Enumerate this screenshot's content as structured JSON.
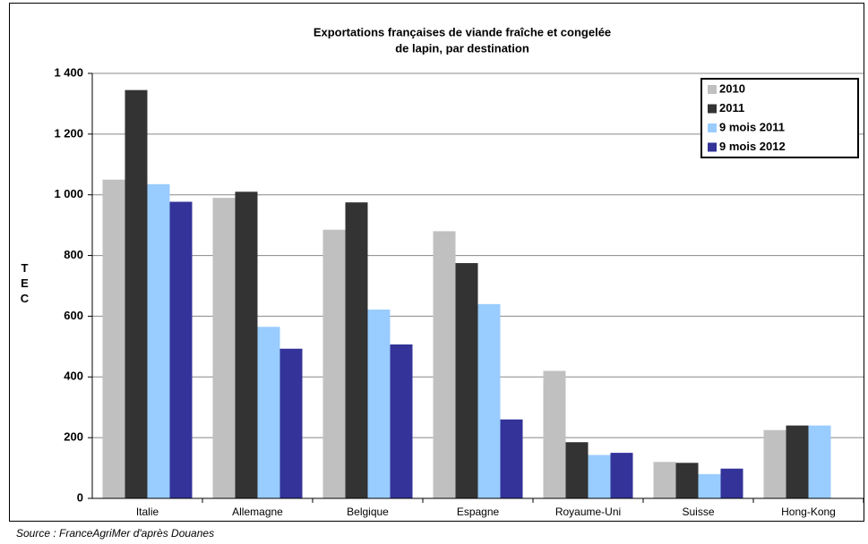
{
  "chart_data": {
    "type": "bar",
    "title": [
      "Exportations françaises de viande fraîche et congelée",
      "de lapin, par destination"
    ],
    "y_label": "TEC",
    "source": "Source : FranceAgriMer d'après Douanes",
    "categories": [
      "Italie",
      "Allemagne",
      "Belgique",
      "Espagne",
      "Royaume-Uni",
      "Suisse",
      "Hong-Kong"
    ],
    "series": [
      {
        "name": "2010",
        "color": "#c0c0c0",
        "values": [
          1050,
          990,
          885,
          880,
          420,
          120,
          225
        ]
      },
      {
        "name": "2011",
        "color": "#333333",
        "values": [
          1345,
          1010,
          975,
          775,
          185,
          117,
          240
        ]
      },
      {
        "name": "9 mois 2011",
        "color": "#99ccff",
        "values": [
          1035,
          565,
          622,
          640,
          143,
          80,
          240
        ]
      },
      {
        "name": "9 mois 2012",
        "color": "#333399",
        "values": [
          977,
          493,
          507,
          260,
          150,
          98,
          null
        ]
      }
    ],
    "ylim": [
      0,
      1400
    ],
    "yticks": [
      0,
      200,
      400,
      600,
      800,
      {
        "value": 1000,
        "label": "1 000"
      },
      {
        "value": 1200,
        "label": "1 200"
      },
      {
        "value": 1400,
        "label": "1 400"
      }
    ],
    "grid": true,
    "legend": "upper right"
  }
}
